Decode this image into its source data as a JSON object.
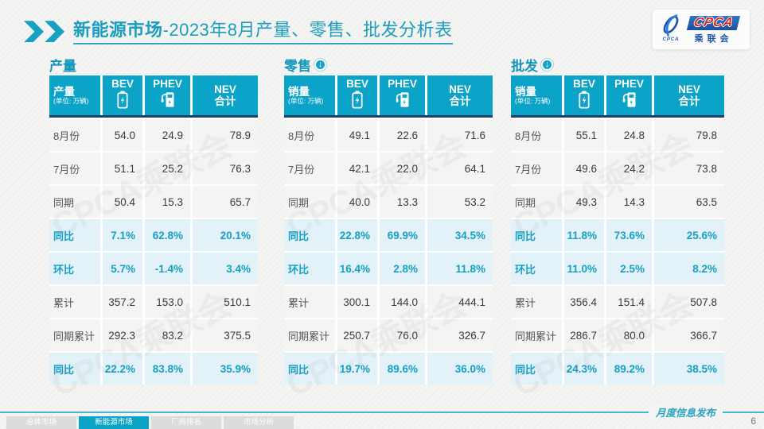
{
  "slide": {
    "title_bold": "新能源市场",
    "title_rest": "-2023年8月产量、零售、批发分析表",
    "watermark": "CPCA乘联会",
    "page_number": "6",
    "footer_note": "月度信息发布"
  },
  "logo": {
    "cpca": "CPCA",
    "org": "乘联会",
    "emblem_sub": "CPCA"
  },
  "icons": {
    "arrow_down": "↓"
  },
  "columns": {
    "bev": "BEV",
    "phev": "PHEV",
    "nev_line1": "NEV",
    "nev_line2": "合计",
    "unit": "(单位: 万辆)"
  },
  "chart_data": [
    {
      "type": "table",
      "section": "产量",
      "has_arrow": false,
      "header_label": "产量",
      "columns": [
        "BEV",
        "PHEV",
        "NEV合计"
      ],
      "rows": [
        {
          "label": "8月份",
          "values": [
            "54.0",
            "24.9",
            "78.9"
          ],
          "highlight": false
        },
        {
          "label": "7月份",
          "values": [
            "51.1",
            "25.2",
            "76.3"
          ],
          "highlight": false
        },
        {
          "label": "同期",
          "values": [
            "50.4",
            "15.3",
            "65.7"
          ],
          "highlight": false
        },
        {
          "label": "同比",
          "values": [
            "7.1%",
            "62.8%",
            "20.1%"
          ],
          "highlight": true
        },
        {
          "label": "环比",
          "values": [
            "5.7%",
            "-1.4%",
            "3.4%"
          ],
          "highlight": true
        },
        {
          "label": "累计",
          "values": [
            "357.2",
            "153.0",
            "510.1"
          ],
          "highlight": false
        },
        {
          "label": "同期累计",
          "values": [
            "292.3",
            "83.2",
            "375.5"
          ],
          "highlight": false
        },
        {
          "label": "同比",
          "values": [
            "22.2%",
            "83.8%",
            "35.9%"
          ],
          "highlight": true
        }
      ]
    },
    {
      "type": "table",
      "section": "零售",
      "has_arrow": true,
      "header_label": "销量",
      "columns": [
        "BEV",
        "PHEV",
        "NEV合计"
      ],
      "rows": [
        {
          "label": "8月份",
          "values": [
            "49.1",
            "22.6",
            "71.6"
          ],
          "highlight": false
        },
        {
          "label": "7月份",
          "values": [
            "42.1",
            "22.0",
            "64.1"
          ],
          "highlight": false
        },
        {
          "label": "同期",
          "values": [
            "40.0",
            "13.3",
            "53.2"
          ],
          "highlight": false
        },
        {
          "label": "同比",
          "values": [
            "22.8%",
            "69.9%",
            "34.5%"
          ],
          "highlight": true
        },
        {
          "label": "环比",
          "values": [
            "16.4%",
            "2.8%",
            "11.8%"
          ],
          "highlight": true
        },
        {
          "label": "累计",
          "values": [
            "300.1",
            "144.0",
            "444.1"
          ],
          "highlight": false
        },
        {
          "label": "同期累计",
          "values": [
            "250.7",
            "76.0",
            "326.7"
          ],
          "highlight": false
        },
        {
          "label": "同比",
          "values": [
            "19.7%",
            "89.6%",
            "36.0%"
          ],
          "highlight": true
        }
      ]
    },
    {
      "type": "table",
      "section": "批发",
      "has_arrow": true,
      "header_label": "销量",
      "columns": [
        "BEV",
        "PHEV",
        "NEV合计"
      ],
      "rows": [
        {
          "label": "8月份",
          "values": [
            "55.1",
            "24.8",
            "79.8"
          ],
          "highlight": false
        },
        {
          "label": "7月份",
          "values": [
            "49.6",
            "24.2",
            "73.8"
          ],
          "highlight": false
        },
        {
          "label": "同期",
          "values": [
            "49.3",
            "14.3",
            "63.5"
          ],
          "highlight": false
        },
        {
          "label": "同比",
          "values": [
            "11.8%",
            "73.6%",
            "25.6%"
          ],
          "highlight": true
        },
        {
          "label": "环比",
          "values": [
            "11.0%",
            "2.5%",
            "8.2%"
          ],
          "highlight": true
        },
        {
          "label": "累计",
          "values": [
            "356.4",
            "151.4",
            "507.8"
          ],
          "highlight": false
        },
        {
          "label": "同期累计",
          "values": [
            "286.7",
            "80.0",
            "366.7"
          ],
          "highlight": false
        },
        {
          "label": "同比",
          "values": [
            "24.3%",
            "89.2%",
            "38.5%"
          ],
          "highlight": true
        }
      ]
    }
  ],
  "footer_tabs": [
    {
      "label": "总体市场",
      "active": false
    },
    {
      "label": "新能源市场",
      "active": true
    },
    {
      "label": "厂商排名",
      "active": false
    },
    {
      "label": "市场分析",
      "active": false
    }
  ],
  "colors": {
    "teal": "#0ba3c7",
    "navy": "#1e3f68",
    "highlight_bg": "#e3f1f8",
    "accent_text": "#15a0c4",
    "title": "#1b9dbf"
  }
}
